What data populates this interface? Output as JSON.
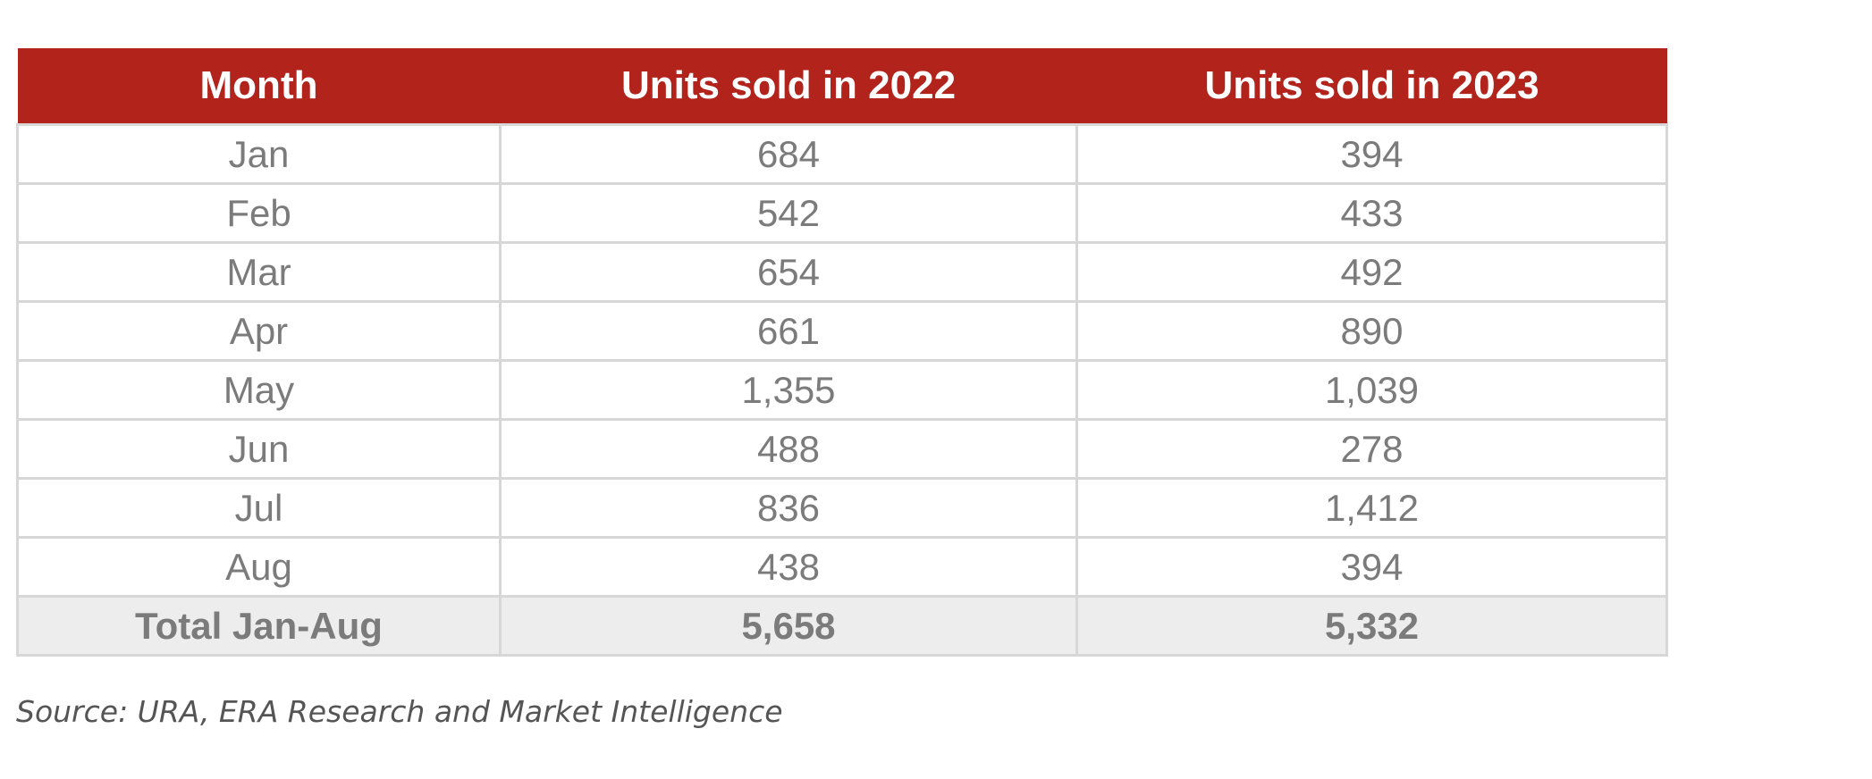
{
  "chart_data": {
    "type": "table",
    "columns": [
      "Month",
      "Units sold in 2022",
      "Units sold in 2023"
    ],
    "rows": [
      [
        "Jan",
        "684",
        "394"
      ],
      [
        "Feb",
        "542",
        "433"
      ],
      [
        "Mar",
        "654",
        "492"
      ],
      [
        "Apr",
        "661",
        "890"
      ],
      [
        "May",
        "1,355",
        "1,039"
      ],
      [
        "Jun",
        "488",
        "278"
      ],
      [
        "Jul",
        "836",
        "1,412"
      ],
      [
        "Aug",
        "438",
        "394"
      ]
    ],
    "total_row": [
      "Total Jan-Aug",
      "5,658",
      "5,332"
    ]
  },
  "source": "Source: URA, ERA Research and Market Intelligence",
  "colors": {
    "header_bg": "#b1231b",
    "header_text": "#ffffff",
    "cell_text": "#7b7b7b",
    "total_bg": "#ededed",
    "grid": "#d7d7d7"
  }
}
